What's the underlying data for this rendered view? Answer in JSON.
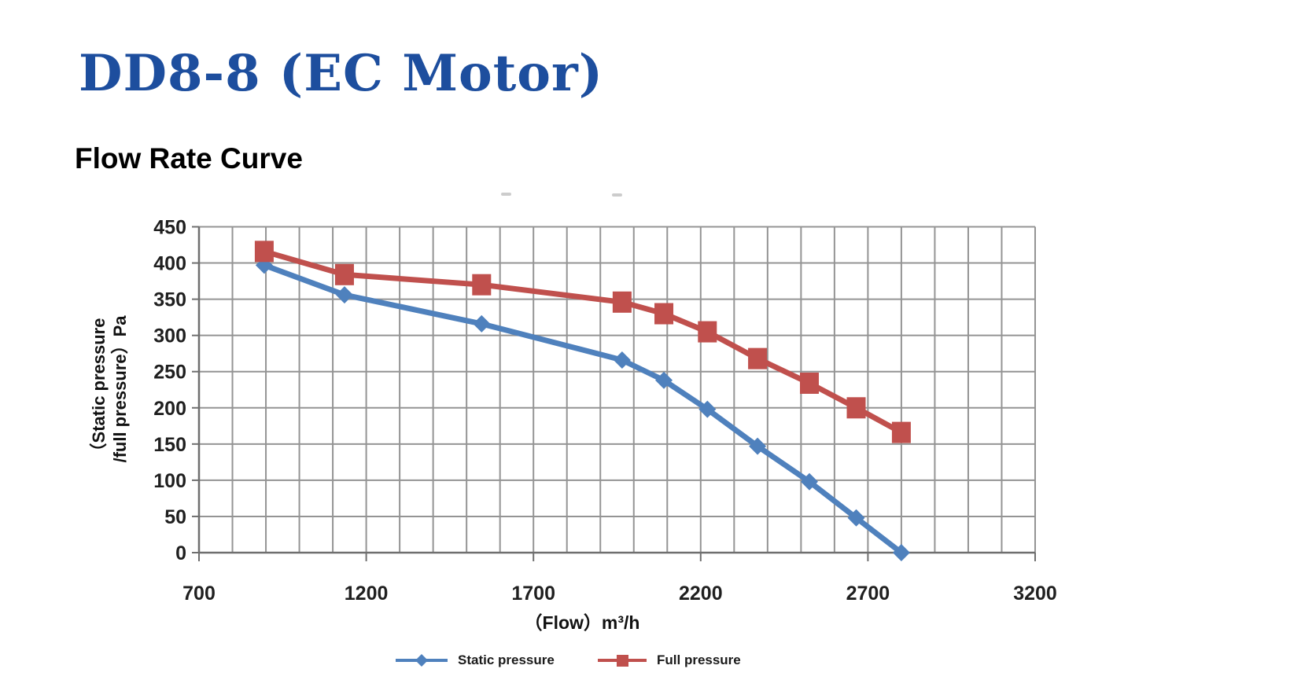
{
  "page": {
    "title": "DD8-8 (EC Motor)",
    "subtitle": "Flow Rate Curve"
  },
  "colors": {
    "title": "#1d4e9e",
    "static_series": "#4f81bd",
    "full_series": "#c0504d",
    "gridline": "#949494",
    "axis": "#6f6f6f",
    "tick_text": "#1f1f1f"
  },
  "chart_data": {
    "type": "line",
    "title": "Flow Rate Curve",
    "xlabel": "（Flow）m³/h",
    "ylabel": "（Static pressure /full pressure）Pa",
    "ylabel_lines": [
      "（Static pressure",
      "/full pressure）Pa"
    ],
    "xlim": [
      700,
      3200
    ],
    "ylim": [
      0,
      450
    ],
    "x_ticks": [
      700,
      1200,
      1700,
      2200,
      2700,
      3200
    ],
    "y_ticks": [
      450,
      400,
      350,
      300,
      250,
      200,
      150,
      100,
      50,
      0
    ],
    "x_minor_gridline_step": 100,
    "grid": true,
    "legend_position": "bottom-center",
    "x": [
      895,
      1135,
      1545,
      1965,
      2090,
      2220,
      2370,
      2525,
      2665,
      2800
    ],
    "series": [
      {
        "name": "Static pressure",
        "marker": "diamond",
        "color": "#4f81bd",
        "values": [
          397,
          356,
          316,
          266,
          238,
          198,
          147,
          98,
          48,
          0
        ]
      },
      {
        "name": "Full pressure",
        "marker": "square",
        "color": "#c0504d",
        "values": [
          416,
          384,
          370,
          346,
          330,
          305,
          268,
          234,
          200,
          166
        ]
      }
    ]
  }
}
